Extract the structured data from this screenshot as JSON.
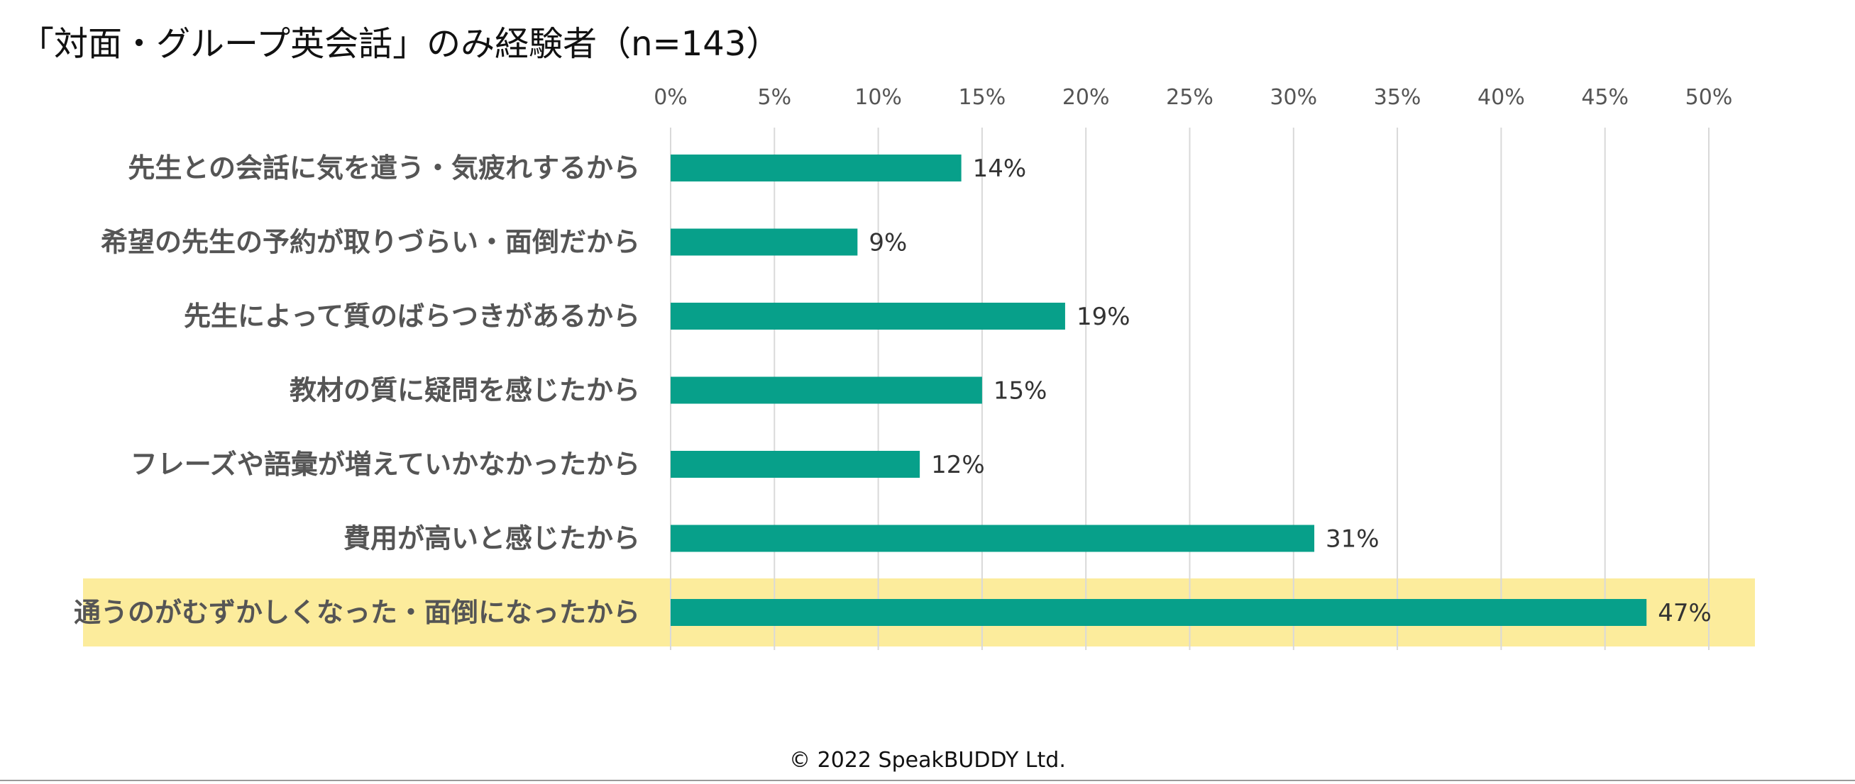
{
  "chart_data": {
    "type": "bar",
    "orientation": "horizontal",
    "title": "「対面・グループ英会話」のみ経験者（n=143）",
    "categories": [
      "先生との会話に気を遣う・気疲れするから",
      "希望の先生の予約が取りづらい・面倒だから",
      "先生によって質のばらつきがあるから",
      "教材の質に疑問を感じたから",
      "フレーズや語彙が増えていかなかったから",
      "費用が高いと感じたから",
      "通うのがむずかしくなった・面倒になったから"
    ],
    "values": [
      14,
      9,
      19,
      15,
      12,
      31,
      47
    ],
    "value_labels": [
      "14%",
      "9%",
      "19%",
      "15%",
      "12%",
      "31%",
      "47%"
    ],
    "highlighted_category": "通うのがむずかしくなった・面倒になったから",
    "xlim": [
      0,
      50
    ],
    "x_ticks": [
      "0%",
      "5%",
      "10%",
      "15%",
      "20%",
      "25%",
      "30%",
      "35%",
      "40%",
      "45%",
      "50%"
    ],
    "x_axis_position": "top",
    "grid": true,
    "colors": {
      "bar": "#07a08a",
      "highlight": "#fcec9c",
      "grid": "#d9d9d9"
    }
  },
  "footer": {
    "copyright": "© 2022 SpeakBUDDY Ltd."
  }
}
